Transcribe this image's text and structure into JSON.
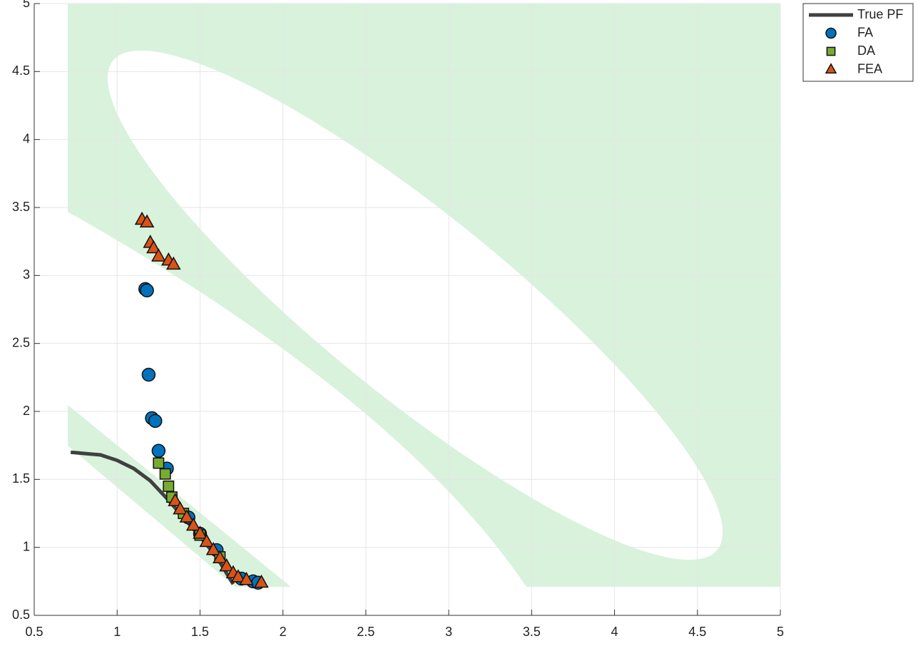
{
  "chart_data": {
    "type": "scatter",
    "xlim": [
      0.5,
      5
    ],
    "ylim": [
      0.5,
      5
    ],
    "xticks": [
      0.5,
      1,
      1.5,
      2,
      2.5,
      3,
      3.5,
      4,
      4.5,
      5
    ],
    "yticks": [
      0.5,
      1,
      1.5,
      2,
      2.5,
      3,
      3.5,
      4,
      4.5,
      5
    ],
    "grid": true,
    "legend": "northeast-outside",
    "series": [
      {
        "name": "True PF",
        "marker": "line",
        "color": "#404040",
        "x": [
          0.72,
          0.9,
          1.0,
          1.1,
          1.2,
          1.3,
          1.4,
          1.5,
          1.6,
          1.7
        ],
        "values": [
          1.7,
          1.68,
          1.64,
          1.58,
          1.49,
          1.36,
          1.22,
          1.08,
          0.93,
          0.73
        ]
      },
      {
        "name": "FA",
        "marker": "circle",
        "color": "#0072bd",
        "x": [
          1.17,
          1.18,
          1.19,
          1.21,
          1.23,
          1.25,
          1.3,
          1.43,
          1.5,
          1.6,
          1.75,
          1.82,
          1.85
        ],
        "values": [
          2.9,
          2.89,
          2.27,
          1.95,
          1.93,
          1.71,
          1.58,
          1.22,
          1.1,
          0.98,
          0.77,
          0.75,
          0.74
        ]
      },
      {
        "name": "DA",
        "marker": "square",
        "color": "#77ac30",
        "x": [
          1.25,
          1.29,
          1.31,
          1.33,
          1.4,
          1.5,
          1.62
        ],
        "values": [
          1.62,
          1.54,
          1.45,
          1.37,
          1.25,
          1.09,
          0.93
        ]
      },
      {
        "name": "FEA",
        "marker": "triangle",
        "color": "#d95319",
        "x": [
          1.15,
          1.18,
          1.2,
          1.22,
          1.25,
          1.31,
          1.34,
          1.35,
          1.38,
          1.42,
          1.46,
          1.5,
          1.54,
          1.58,
          1.62,
          1.66,
          1.7,
          1.73,
          1.78,
          1.87
        ],
        "values": [
          3.41,
          3.39,
          3.24,
          3.2,
          3.14,
          3.11,
          3.08,
          1.34,
          1.28,
          1.22,
          1.16,
          1.1,
          1.04,
          0.98,
          0.92,
          0.86,
          0.81,
          0.78,
          0.76,
          0.74
        ]
      }
    ]
  }
}
